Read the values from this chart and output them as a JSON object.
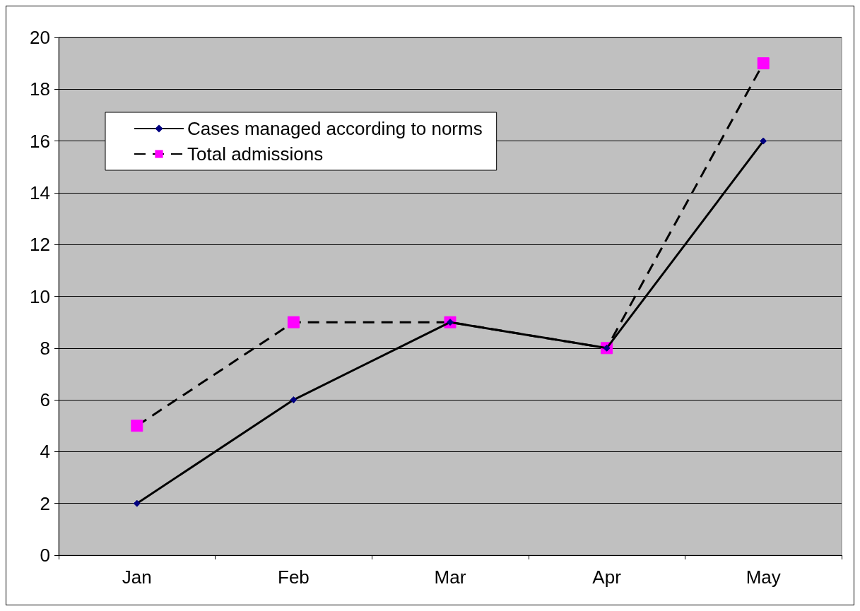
{
  "chart_data": {
    "type": "line",
    "categories": [
      "Jan",
      "Feb",
      "Mar",
      "Apr",
      "May"
    ],
    "series": [
      {
        "name": "Cases managed according to norms",
        "color": "#000080",
        "marker": "diamond",
        "line_style": "solid",
        "values": [
          2,
          6,
          9,
          8,
          16
        ]
      },
      {
        "name": "Total admissions",
        "color": "#ff00ff",
        "marker": "square",
        "line_style": "dashed",
        "values": [
          5,
          9,
          9,
          8,
          19
        ]
      }
    ],
    "ylim": [
      0,
      20
    ],
    "yticks": [
      0,
      2,
      4,
      6,
      8,
      10,
      12,
      14,
      16,
      18,
      20
    ],
    "grid": "y",
    "legend": "top left"
  }
}
